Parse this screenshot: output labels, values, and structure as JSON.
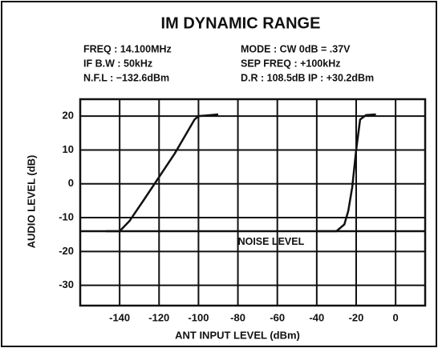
{
  "chart_data": {
    "type": "line",
    "title": "IM DYNAMIC RANGE",
    "info": [
      [
        "FREQ : 14.100MHz",
        "MODE : CW 0dB = .37V"
      ],
      [
        "IF B.W : 50kHz",
        "SEP FREQ : +100kHz"
      ],
      [
        "N.F.L : −132.6dBm",
        "D.R : 108.5dB   IP : +30.2dBm"
      ]
    ],
    "x_label": "ANT INPUT LEVEL (dBm)",
    "y_label": "AUDIO LEVEL (dB)",
    "xlim": [
      -160,
      15
    ],
    "ylim": [
      -36,
      25
    ],
    "xticks": [
      -140,
      -120,
      -100,
      -80,
      -60,
      -40,
      -20,
      0
    ],
    "yticks": [
      -30,
      -20,
      -10,
      0,
      10,
      20
    ],
    "grid": true,
    "series": [
      {
        "color": "#111111",
        "x": [
          -147,
          -140,
          -135,
          -128,
          -120,
          -112,
          -105,
          -102,
          -100,
          -90
        ],
        "values": [
          -14,
          -14,
          -11,
          -5,
          2,
          9,
          16,
          19,
          20,
          20.5
        ]
      },
      {
        "color": "#111111",
        "x": [
          -40,
          -30,
          -26,
          -24,
          -22,
          -20,
          -18,
          -15,
          -10
        ],
        "values": [
          -14,
          -14,
          -12,
          -8,
          -1,
          10,
          19,
          20.3,
          20.5
        ]
      }
    ],
    "noise_level": -14,
    "noise_label": "NOISE LEVEL"
  }
}
